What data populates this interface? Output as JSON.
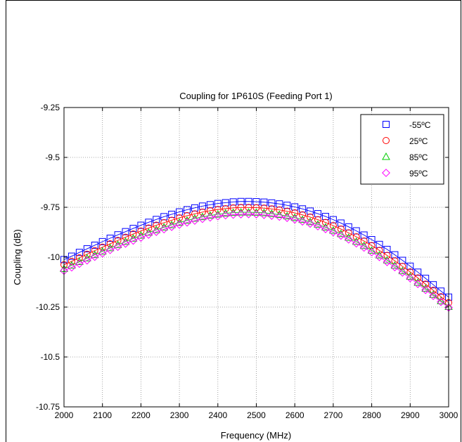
{
  "chart_data": {
    "type": "scatter",
    "title": "Coupling for 1P610S (Feeding Port 1)",
    "xlabel": "Frequency (MHz)",
    "ylabel": "Coupling (dB)",
    "xlim": [
      2000,
      3000
    ],
    "ylim": [
      -10.75,
      -9.25
    ],
    "xticks": [
      2000,
      2100,
      2200,
      2300,
      2400,
      2500,
      2600,
      2700,
      2800,
      2900,
      3000
    ],
    "xtick_labels": [
      "2000",
      "2100",
      "2200",
      "2300",
      "2400",
      "2500",
      "2600",
      "2700",
      "2800",
      "2900",
      "3000"
    ],
    "yticks": [
      -10.75,
      -10.5,
      -10.25,
      -10,
      -9.75,
      -9.5,
      -9.25
    ],
    "ytick_labels": [
      "-10.75",
      "-10.5",
      "-10.25",
      "-10",
      "-9.75",
      "-9.5",
      "-9.25"
    ],
    "grid": true,
    "legend_position": "top-right",
    "x": [
      2000,
      2020,
      2040,
      2060,
      2080,
      2100,
      2120,
      2140,
      2160,
      2180,
      2200,
      2220,
      2240,
      2260,
      2280,
      2300,
      2320,
      2340,
      2360,
      2380,
      2400,
      2420,
      2440,
      2460,
      2480,
      2500,
      2520,
      2540,
      2560,
      2580,
      2600,
      2620,
      2640,
      2660,
      2680,
      2700,
      2720,
      2740,
      2760,
      2780,
      2800,
      2820,
      2840,
      2860,
      2880,
      2900,
      2920,
      2940,
      2960,
      2980,
      3000
    ],
    "series": [
      {
        "name": "-55ºC",
        "marker": "square",
        "color": "#0000ff",
        "values": [
          -10.012,
          -9.995,
          -9.976,
          -9.958,
          -9.94,
          -9.922,
          -9.905,
          -9.888,
          -9.872,
          -9.856,
          -9.84,
          -9.825,
          -9.811,
          -9.797,
          -9.785,
          -9.773,
          -9.762,
          -9.753,
          -9.744,
          -9.737,
          -9.731,
          -9.727,
          -9.723,
          -9.721,
          -9.721,
          -9.722,
          -9.724,
          -9.728,
          -9.733,
          -9.74,
          -9.748,
          -9.758,
          -9.769,
          -9.782,
          -9.796,
          -9.812,
          -9.829,
          -9.848,
          -9.868,
          -9.889,
          -9.912,
          -9.936,
          -9.961,
          -9.988,
          -10.016,
          -10.045,
          -10.075,
          -10.106,
          -10.138,
          -10.17,
          -10.2
        ]
      },
      {
        "name": "25ºC",
        "marker": "circle",
        "color": "#ff0000",
        "values": [
          -10.038,
          -10.021,
          -10.003,
          -9.985,
          -9.967,
          -9.95,
          -9.933,
          -9.916,
          -9.9,
          -9.884,
          -9.869,
          -9.854,
          -9.84,
          -9.827,
          -9.815,
          -9.803,
          -9.792,
          -9.783,
          -9.774,
          -9.767,
          -9.761,
          -9.757,
          -9.753,
          -9.751,
          -9.751,
          -9.752,
          -9.754,
          -9.758,
          -9.763,
          -9.77,
          -9.778,
          -9.788,
          -9.799,
          -9.812,
          -9.826,
          -9.842,
          -9.859,
          -9.878,
          -9.898,
          -9.919,
          -9.942,
          -9.966,
          -9.991,
          -10.018,
          -10.046,
          -10.074,
          -10.104,
          -10.135,
          -10.166,
          -10.198,
          -10.228
        ]
      },
      {
        "name": "85ºC",
        "marker": "triangle",
        "color": "#00cc00",
        "values": [
          -10.058,
          -10.041,
          -10.023,
          -10.005,
          -9.988,
          -9.971,
          -9.954,
          -9.938,
          -9.922,
          -9.906,
          -9.891,
          -9.876,
          -9.863,
          -9.85,
          -9.838,
          -9.826,
          -9.816,
          -9.806,
          -9.798,
          -9.791,
          -9.785,
          -9.78,
          -9.777,
          -9.775,
          -9.775,
          -9.776,
          -9.778,
          -9.782,
          -9.787,
          -9.794,
          -9.802,
          -9.812,
          -9.823,
          -9.836,
          -9.85,
          -9.866,
          -9.883,
          -9.902,
          -9.922,
          -9.943,
          -9.966,
          -9.99,
          -10.015,
          -10.042,
          -10.069,
          -10.097,
          -10.127,
          -10.157,
          -10.188,
          -10.219,
          -10.248
        ]
      },
      {
        "name": "95ºC",
        "marker": "diamond",
        "color": "#ff00ff",
        "values": [
          -10.068,
          -10.051,
          -10.033,
          -10.016,
          -9.998,
          -9.981,
          -9.964,
          -9.948,
          -9.932,
          -9.917,
          -9.902,
          -9.887,
          -9.873,
          -9.86,
          -9.848,
          -9.837,
          -9.826,
          -9.817,
          -9.808,
          -9.801,
          -9.795,
          -9.79,
          -9.787,
          -9.785,
          -9.784,
          -9.785,
          -9.788,
          -9.792,
          -9.797,
          -9.803,
          -9.811,
          -9.821,
          -9.832,
          -9.845,
          -9.859,
          -9.875,
          -9.892,
          -9.911,
          -9.931,
          -9.952,
          -9.975,
          -9.999,
          -10.024,
          -10.05,
          -10.077,
          -10.105,
          -10.134,
          -10.164,
          -10.194,
          -10.224,
          -10.252
        ]
      }
    ]
  }
}
